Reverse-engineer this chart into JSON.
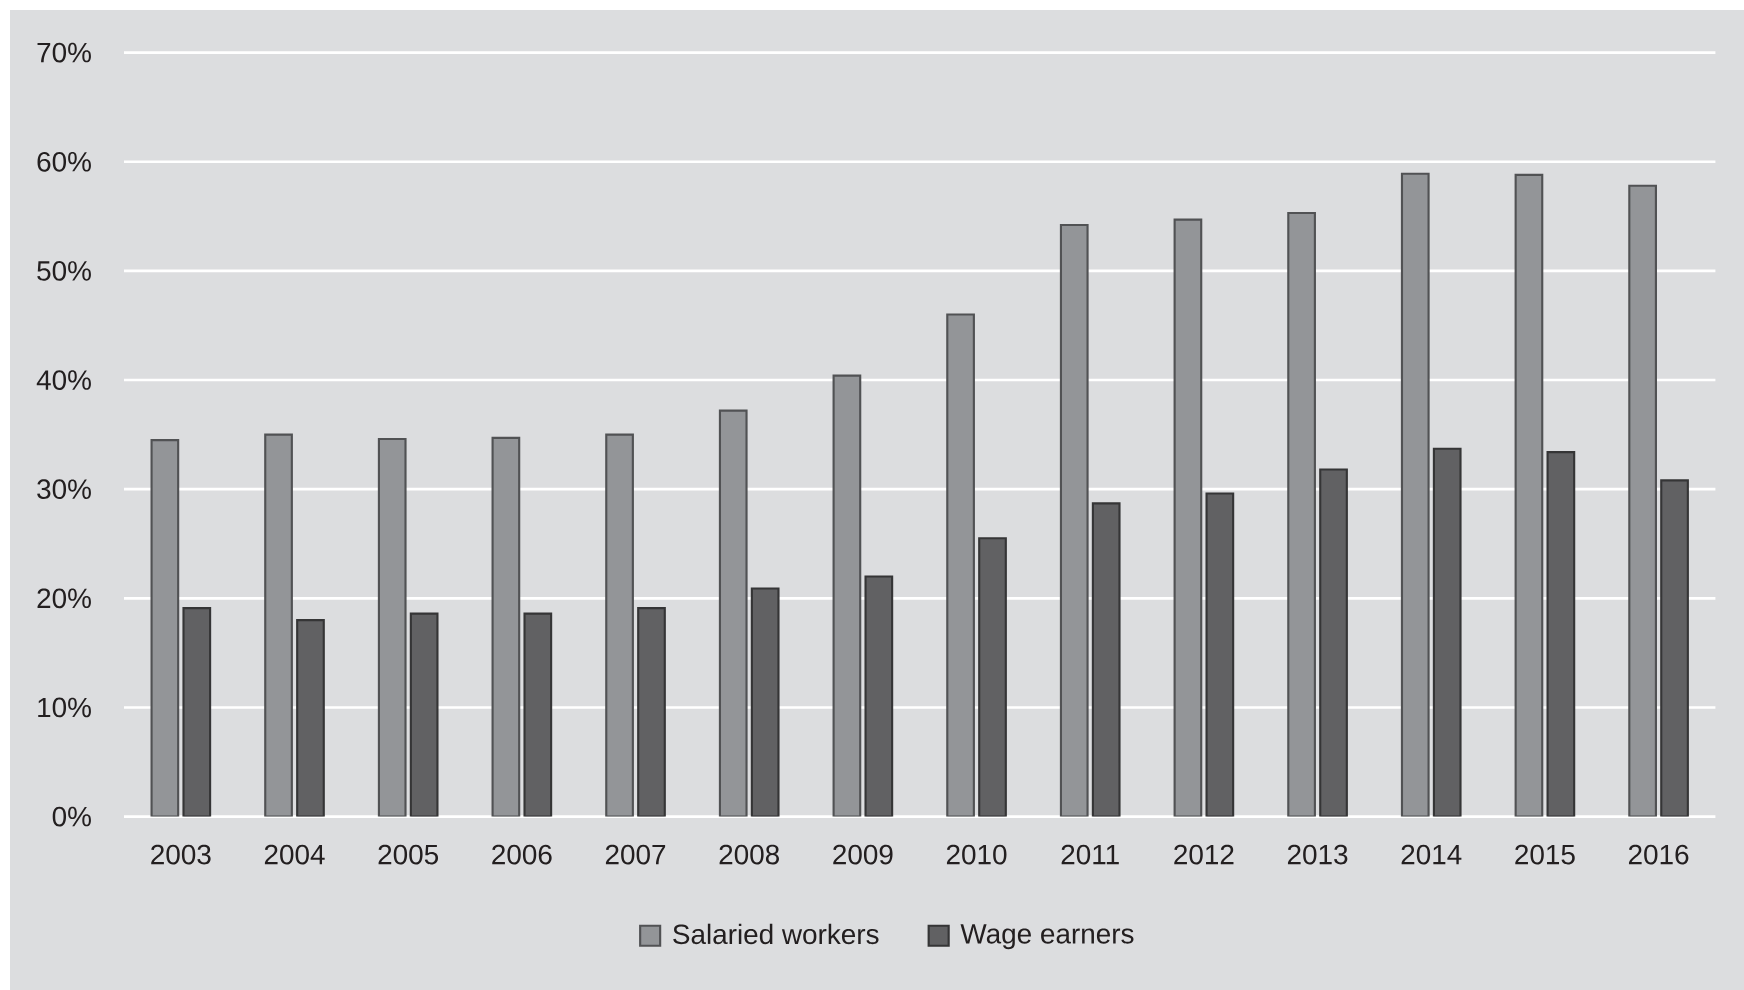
{
  "chart_data": {
    "type": "bar",
    "categories": [
      "2003",
      "2004",
      "2005",
      "2006",
      "2007",
      "2008",
      "2009",
      "2010",
      "2011",
      "2012",
      "2013",
      "2014",
      "2015",
      "2016"
    ],
    "series": [
      {
        "name": "Salaried workers",
        "color": "#939598",
        "values": [
          34.5,
          35.0,
          34.6,
          34.7,
          35.0,
          37.2,
          40.4,
          46.0,
          54.2,
          54.7,
          55.3,
          58.9,
          58.8,
          57.8
        ]
      },
      {
        "name": "Wage earners",
        "color": "#616163",
        "values": [
          19.1,
          18.0,
          18.6,
          18.6,
          19.1,
          20.9,
          22.0,
          25.5,
          28.7,
          29.6,
          31.8,
          33.7,
          33.4,
          30.8
        ]
      }
    ],
    "ylim": [
      0,
      70
    ],
    "yticks": [
      {
        "value": 0,
        "label": "0%"
      },
      {
        "value": 10,
        "label": "10%"
      },
      {
        "value": 20,
        "label": "20%"
      },
      {
        "value": 30,
        "label": "30%"
      },
      {
        "value": 40,
        "label": "40%"
      },
      {
        "value": 50,
        "label": "50%"
      },
      {
        "value": 60,
        "label": "60%"
      },
      {
        "value": 70,
        "label": "70%"
      }
    ],
    "grid": "y",
    "legend": "bottom"
  }
}
